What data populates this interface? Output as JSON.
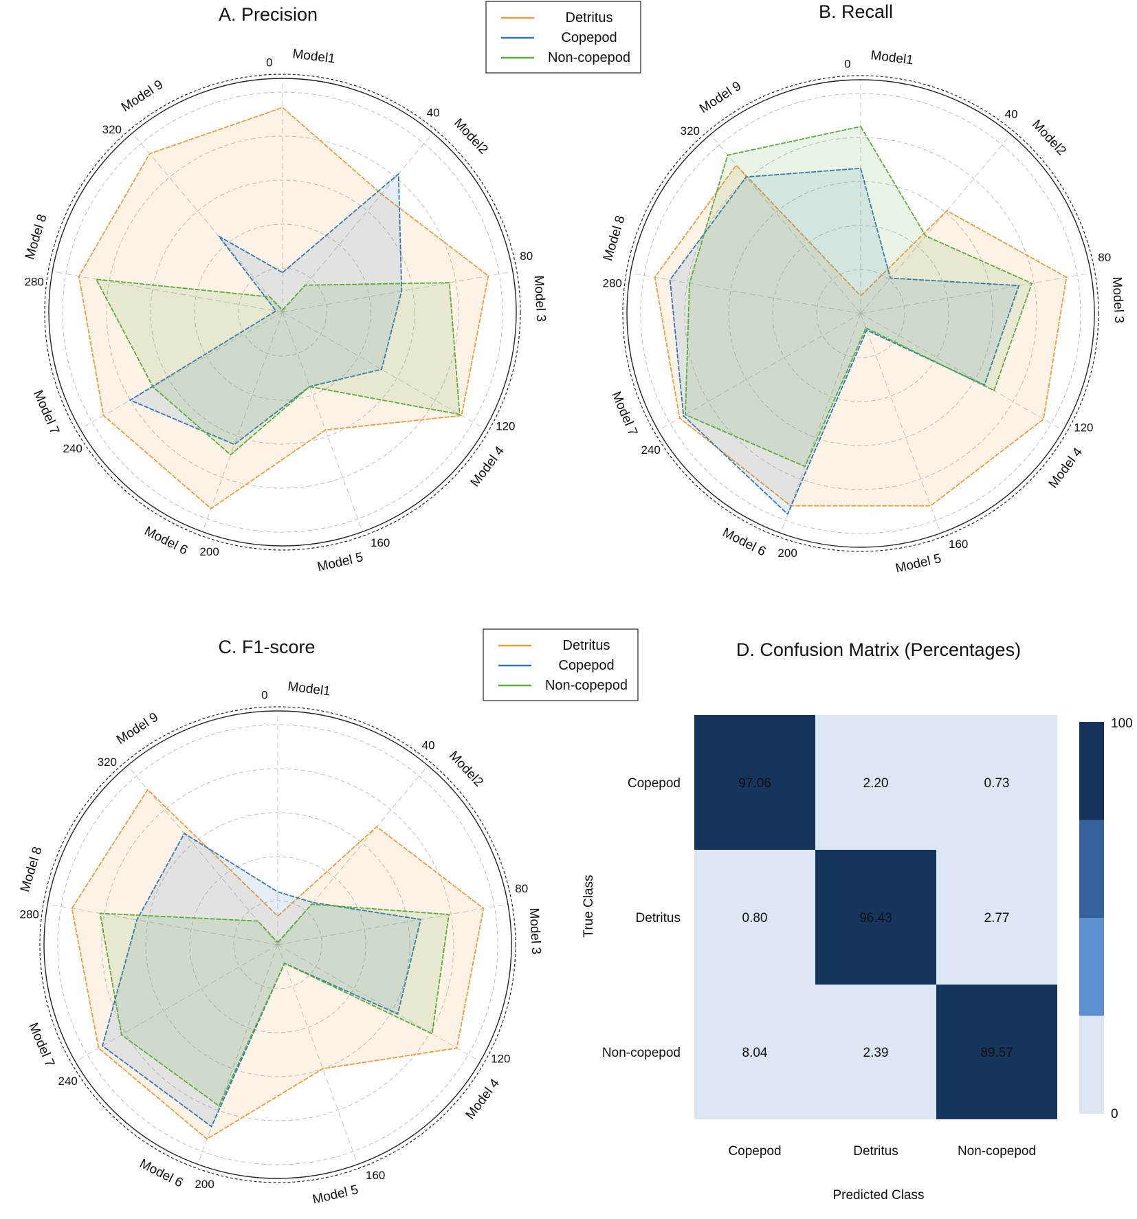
{
  "colors": {
    "Detritus": "#f39b3a",
    "Copepod": "#2f78b8",
    "Non-copepod": "#5aac3c",
    "cm_scale": [
      "#dde7f4",
      "#5b8fd0",
      "#34619c",
      "#16355c"
    ]
  },
  "legend": {
    "entries": [
      "Detritus",
      "Copepod",
      "Non-copepod"
    ]
  },
  "chart_data": [
    {
      "id": "precision",
      "type": "radar",
      "title": "A.  Precision",
      "axes": [
        "Model1",
        "Model2",
        "Model 3",
        "Model 4",
        "Model 5",
        "Model 6",
        "Model 7",
        "Model 8",
        "Model 9"
      ],
      "angle_ticks": [
        "0",
        "40",
        "80",
        "120",
        "160",
        "200",
        "240",
        "280",
        "320"
      ],
      "rmin": 0,
      "rmax": 1,
      "series": [
        {
          "name": "Detritus",
          "values": [
            0.93,
            0.7,
            0.95,
            0.94,
            0.57,
            0.95,
            0.94,
            0.94,
            0.94
          ]
        },
        {
          "name": "Copepod",
          "values": [
            0.18,
            0.82,
            0.55,
            0.52,
            0.36,
            0.64,
            0.8,
            0.03,
            0.45
          ]
        },
        {
          "name": "Non-copepod",
          "values": [
            0.01,
            0.16,
            0.77,
            0.93,
            0.36,
            0.69,
            0.68,
            0.86,
            0.09
          ]
        }
      ]
    },
    {
      "id": "recall",
      "type": "radar",
      "title": "B.  Recall",
      "axes": [
        "Model1",
        "Model2",
        "Model 3",
        "Model 4",
        "Model 5",
        "Model 6",
        "Model 7",
        "Model 8",
        "Model 9"
      ],
      "angle_ticks": [
        "0",
        "40",
        "80",
        "120",
        "160",
        "200",
        "240",
        "280",
        "320"
      ],
      "rmin": 0,
      "rmax": 1,
      "series": [
        {
          "name": "Detritus",
          "values": [
            0.08,
            0.61,
            0.95,
            0.96,
            0.93,
            0.93,
            0.95,
            0.95,
            0.88
          ]
        },
        {
          "name": "Copepod",
          "values": [
            0.66,
            0.21,
            0.73,
            0.65,
            0.08,
            0.97,
            0.93,
            0.88,
            0.81
          ]
        },
        {
          "name": "Non-copepod",
          "values": [
            0.85,
            0.46,
            0.79,
            0.7,
            0.07,
            0.74,
            0.92,
            0.79,
            0.94
          ]
        }
      ]
    },
    {
      "id": "f1",
      "type": "radar",
      "title": "C. F1-score",
      "axes": [
        "Model1",
        "Model2",
        "Model 3",
        "Model 4",
        "Model 5",
        "Model 6",
        "Model 7",
        "Model 8",
        "Model 9"
      ],
      "angle_ticks": [
        "0",
        "40",
        "80",
        "120",
        "160",
        "200",
        "240",
        "280",
        "320"
      ],
      "rmin": 0,
      "rmax": 1,
      "series": [
        {
          "name": "Detritus",
          "values": [
            0.13,
            0.7,
            0.95,
            0.94,
            0.6,
            0.94,
            0.94,
            0.95,
            0.92
          ]
        },
        {
          "name": "Copepod",
          "values": [
            0.24,
            0.25,
            0.66,
            0.63,
            0.09,
            0.88,
            0.92,
            0.65,
            0.66
          ]
        },
        {
          "name": "Non-copepod",
          "values": [
            0.01,
            0.24,
            0.79,
            0.81,
            0.09,
            0.78,
            0.82,
            0.82,
            0.14
          ]
        }
      ]
    },
    {
      "id": "confusion",
      "type": "heatmap",
      "title": "D. Confusion Matrix (Percentages)",
      "xlabel": "Predicted Class",
      "ylabel": "True Class",
      "x_categories": [
        "Copepod",
        "Detritus",
        "Non-copepod"
      ],
      "y_categories": [
        "Copepod",
        "Detritus",
        "Non-copepod"
      ],
      "values": [
        [
          97.06,
          2.2,
          0.73
        ],
        [
          0.8,
          96.43,
          2.77
        ],
        [
          8.04,
          2.39,
          89.57
        ]
      ],
      "labels": [
        [
          "97.06",
          "2.20",
          "0.73"
        ],
        [
          "0.80",
          "96.43",
          "2.77"
        ],
        [
          "8.04",
          "2.39",
          "89.57"
        ]
      ],
      "colorbar": {
        "min": 0,
        "max": 100,
        "min_label": "0",
        "max_label": "100"
      }
    }
  ]
}
